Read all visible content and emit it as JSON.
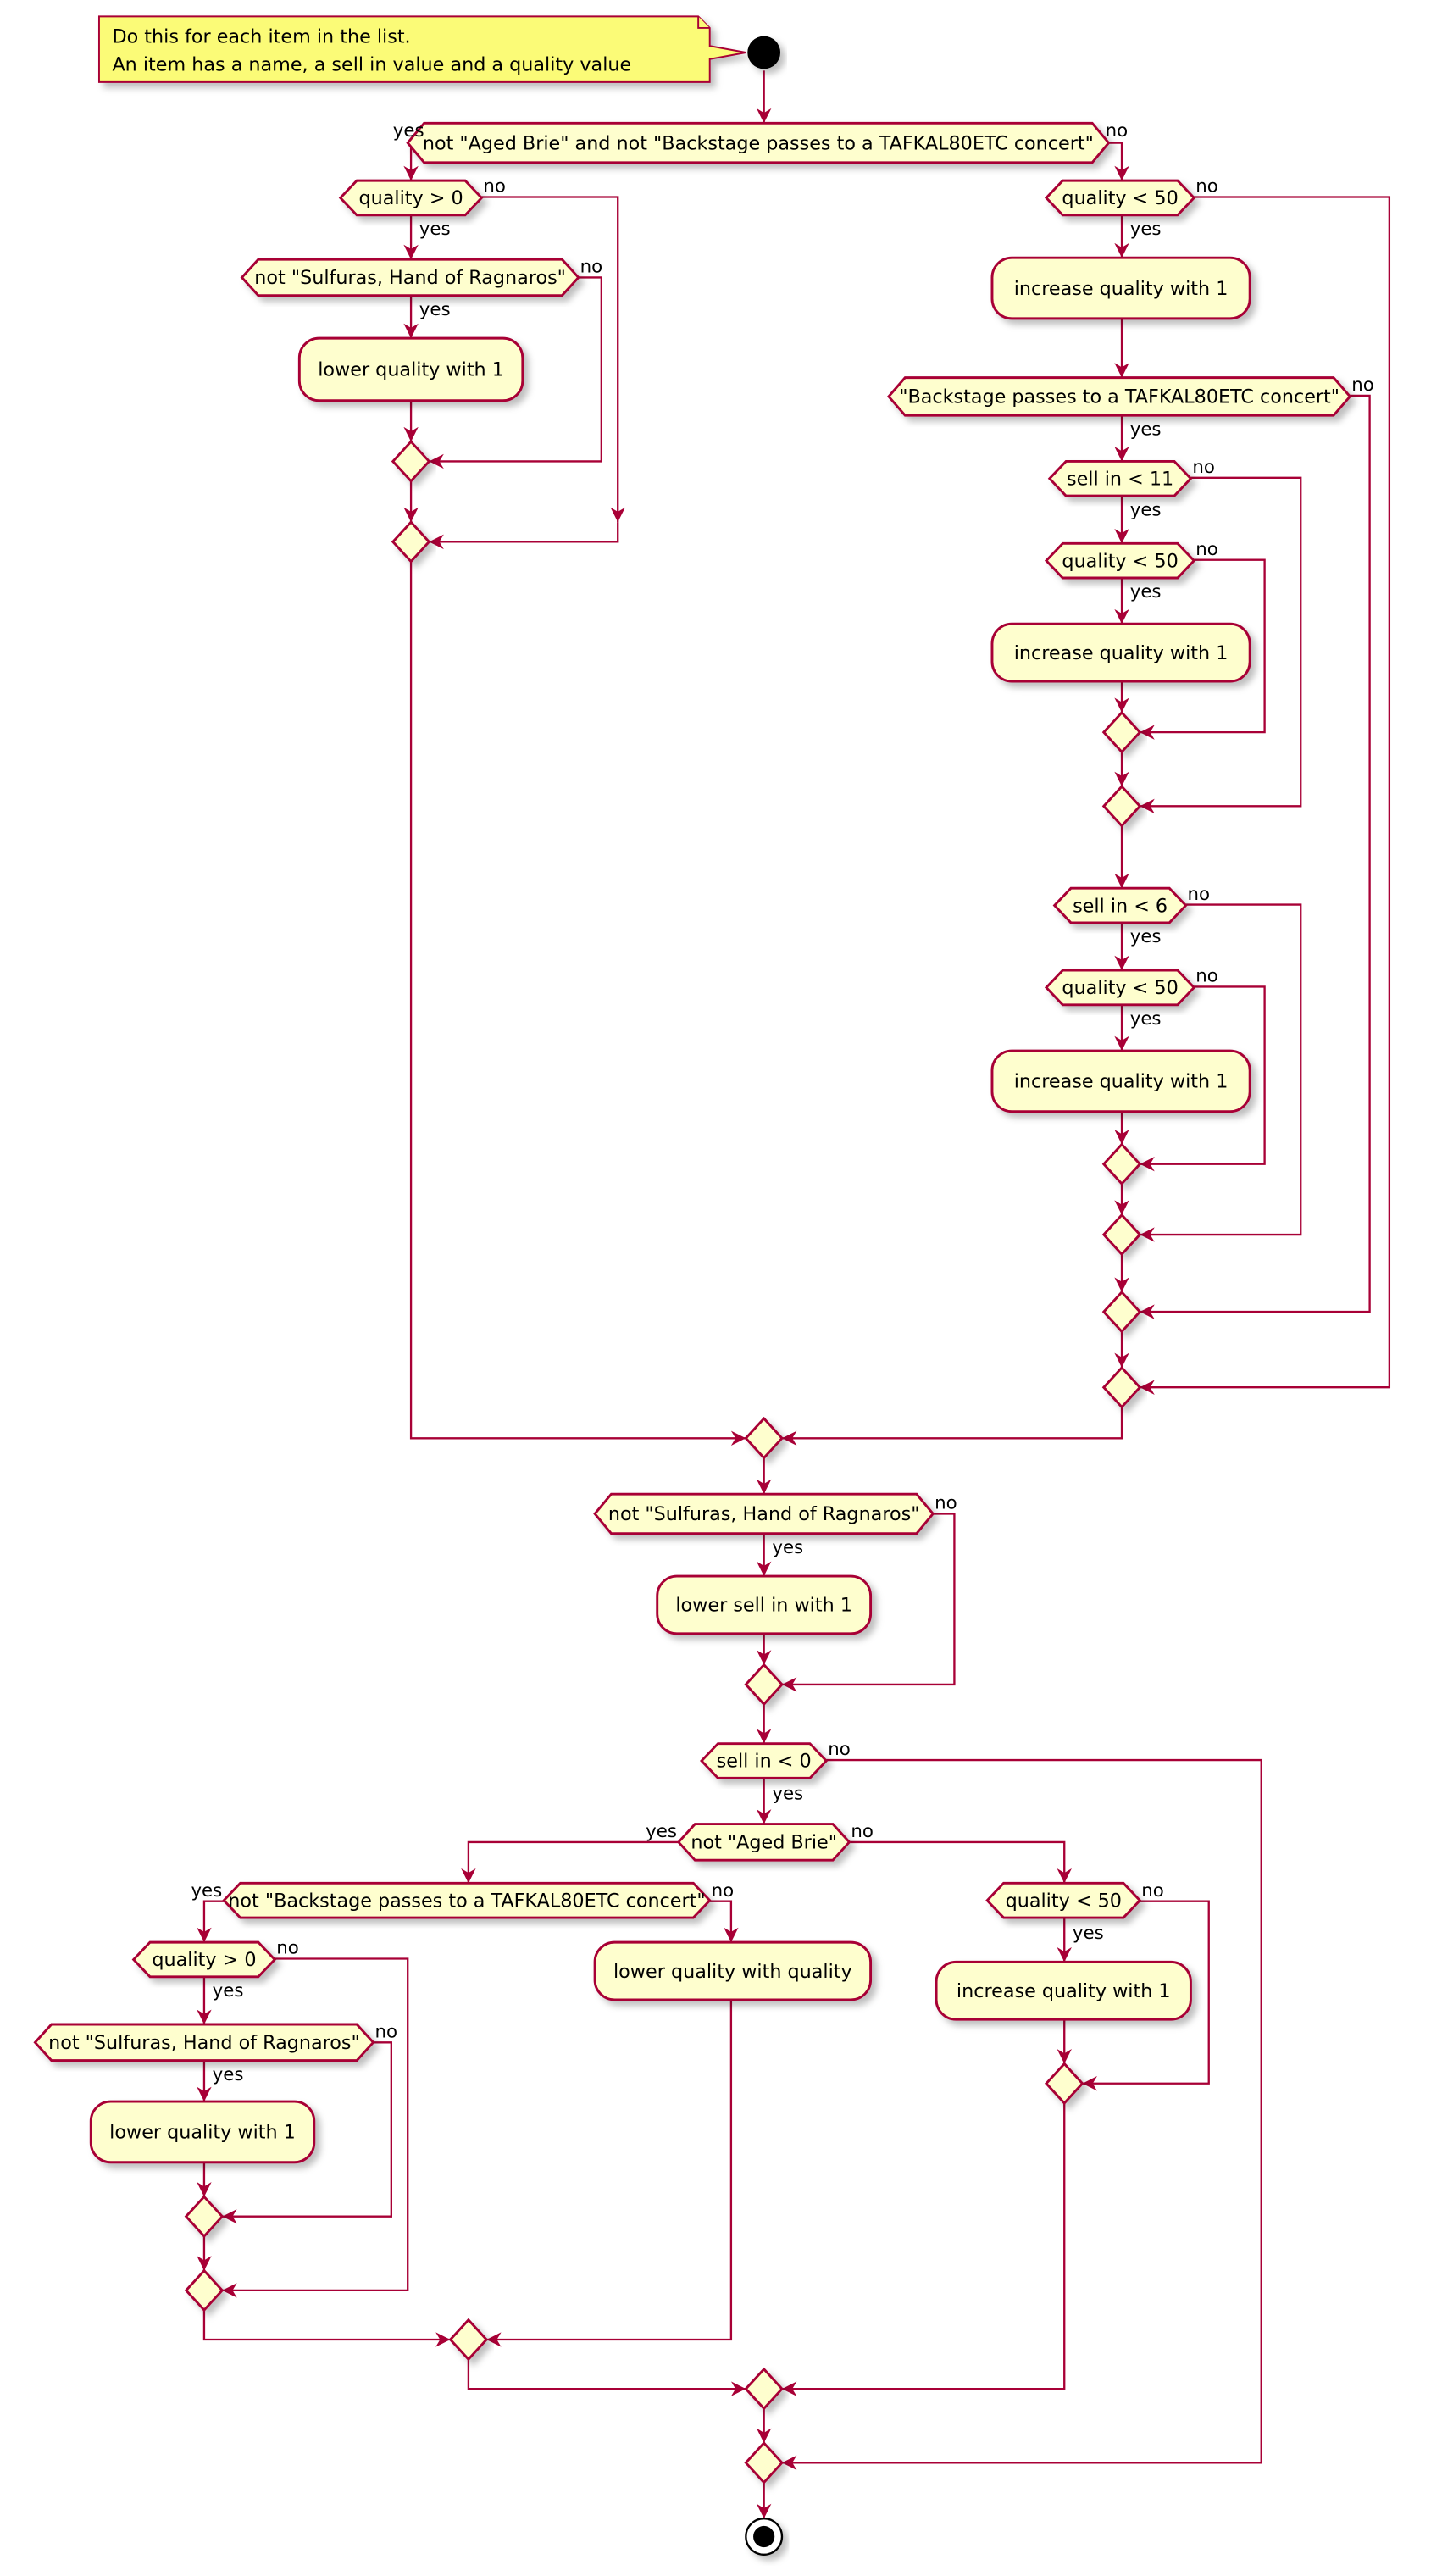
{
  "note": {
    "line1": "Do this for each item in the list.",
    "line2": "An item has a name, a sell in value and a quality value"
  },
  "branch_labels": {
    "yes": "yes",
    "no": "no"
  },
  "nodes": {
    "d1": "not \"Aged Brie\" and not \"Backstage passes to a TAFKAL80ETC concert\"",
    "d_q_gt0_a": "quality > 0",
    "d_sulf_a": "not \"Sulfuras, Hand of Ragnaros\"",
    "a_lower_a": "lower quality with 1",
    "d_q_lt50_a": "quality < 50",
    "a_inc_a": "increase quality with 1",
    "d_backstage": "\"Backstage passes to a TAFKAL80ETC concert\"",
    "d_sell11": "sell in < 11",
    "d_q_lt50_b": "quality < 50",
    "a_inc_b": "increase quality with 1",
    "d_sell6": "sell in < 6",
    "d_q_lt50_c": "quality < 50",
    "a_inc_c": "increase quality with 1",
    "d_sulf_b": "not \"Sulfuras, Hand of Ragnaros\"",
    "a_lower_sell": "lower sell in with 1",
    "d_sell0": "sell in < 0",
    "d_brie": "not \"Aged Brie\"",
    "d_backstage_b": "not \"Backstage passes to a TAFKAL80ETC concert\"",
    "d_q_gt0_b": "quality > 0",
    "d_sulf_c": "not \"Sulfuras, Hand of Ragnaros\"",
    "a_lower_b": "lower quality with 1",
    "a_lower_q": "lower quality with quality",
    "d_q_lt50_d": "quality < 50",
    "a_inc_d": "increase quality with 1"
  },
  "colors": {
    "fill": "#FEFECE",
    "stroke": "#A80036",
    "note": "#FBFB77"
  }
}
